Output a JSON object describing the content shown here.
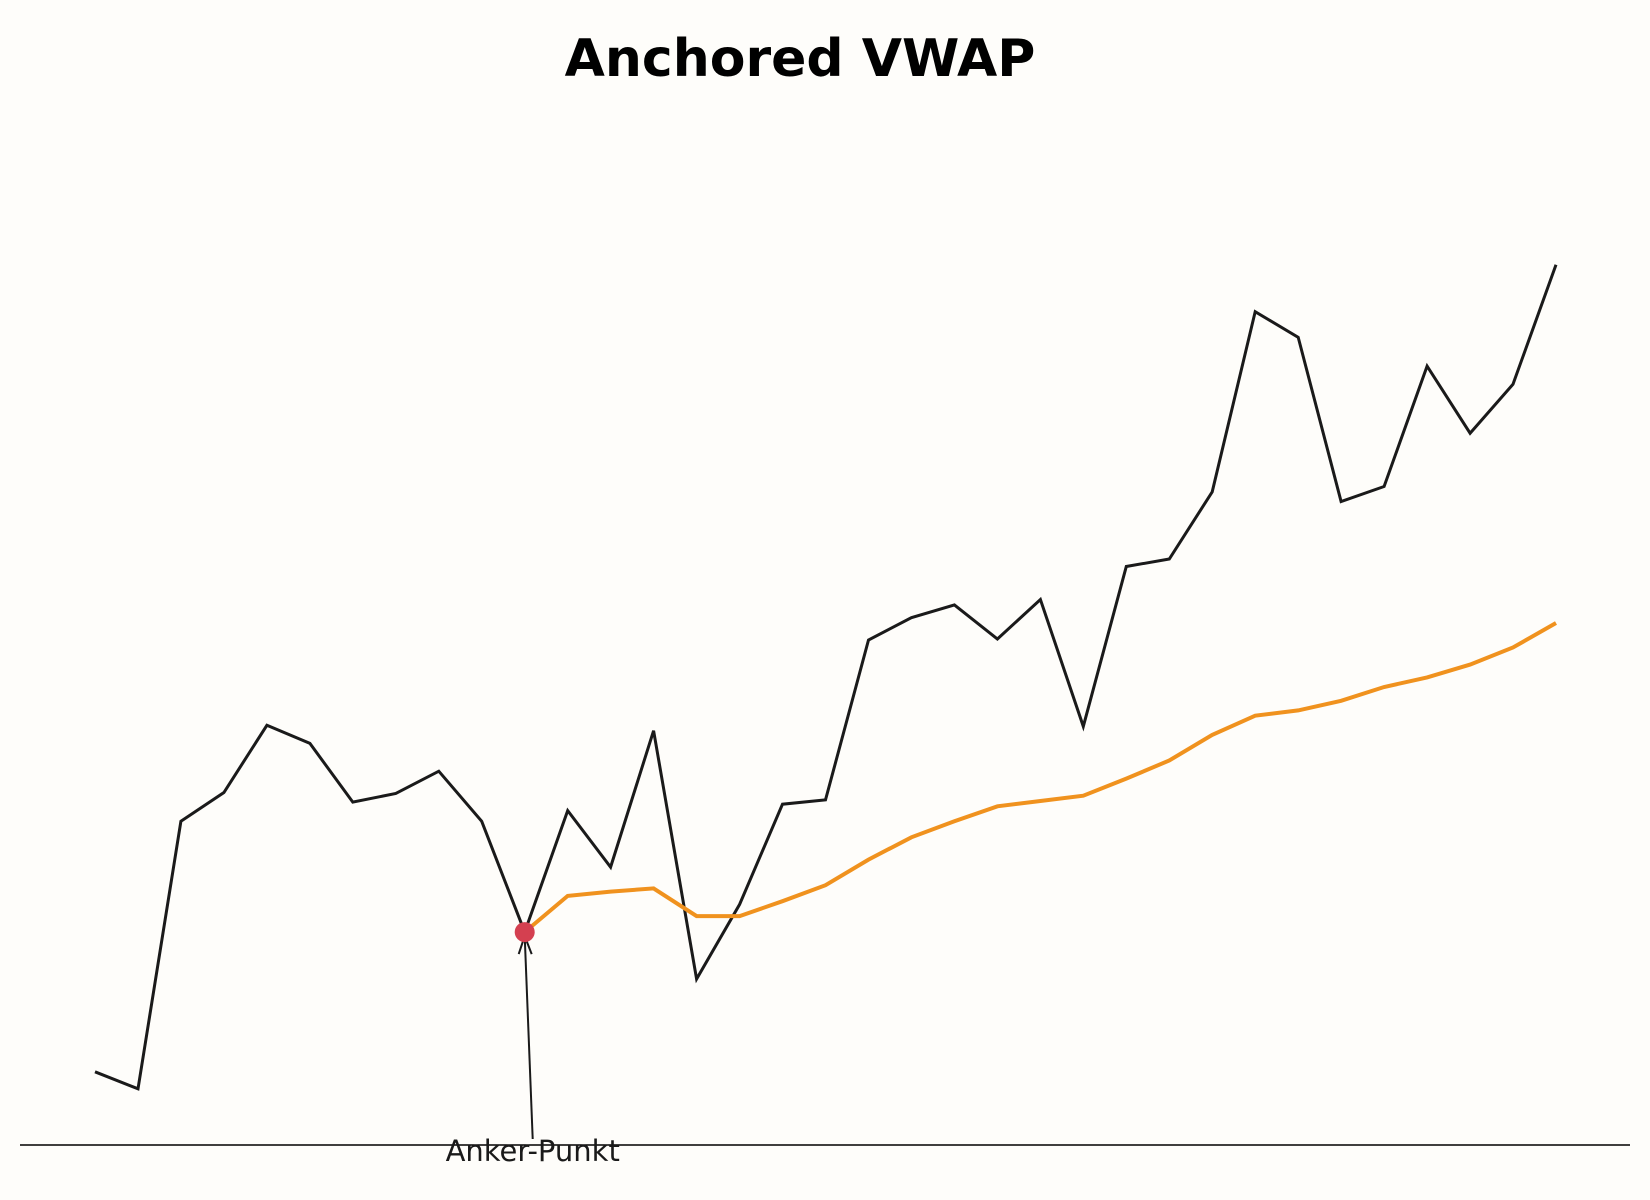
{
  "chart_data": {
    "type": "line",
    "title": "Anchored VWAP",
    "xlabel": "",
    "ylabel": "",
    "grid": false,
    "x": [
      0,
      1,
      2,
      3,
      4,
      5,
      6,
      7,
      8,
      9,
      10,
      11,
      12,
      13,
      14,
      15,
      16,
      17,
      18,
      19,
      20,
      21,
      22,
      23,
      24,
      25,
      26,
      27,
      28,
      29,
      30,
      31,
      32,
      33,
      34
    ],
    "ylim": [
      0,
      100
    ],
    "series": [
      {
        "color": "#1a1a1a",
        "values": [
          6.4,
          4.8,
          29.9,
          32.6,
          38.9,
          37.2,
          31.7,
          32.5,
          34.6,
          29.9,
          19.5,
          30.9,
          25.6,
          38.4,
          15.1,
          22.1,
          31.5,
          31.9,
          46.9,
          49.0,
          50.2,
          47.0,
          50.7,
          38.8,
          53.8,
          54.5,
          60.8,
          77.7,
          75.3,
          59.9,
          61.3,
          72.6,
          66.3,
          70.9,
          82.1
        ]
      },
      {
        "color": "#f0921e",
        "values": [
          null,
          null,
          null,
          null,
          null,
          null,
          null,
          null,
          null,
          null,
          19.5,
          22.9,
          23.3,
          23.6,
          21.0,
          21.0,
          22.4,
          23.9,
          26.3,
          28.4,
          29.9,
          31.3,
          31.8,
          32.3,
          33.9,
          35.6,
          38.0,
          39.8,
          40.3,
          41.2,
          42.5,
          43.4,
          44.6,
          46.2,
          48.5
        ]
      }
    ],
    "anchor": {
      "x": 10,
      "y": 19.5,
      "label": "Anker-Punkt",
      "color": "#d44050"
    }
  }
}
